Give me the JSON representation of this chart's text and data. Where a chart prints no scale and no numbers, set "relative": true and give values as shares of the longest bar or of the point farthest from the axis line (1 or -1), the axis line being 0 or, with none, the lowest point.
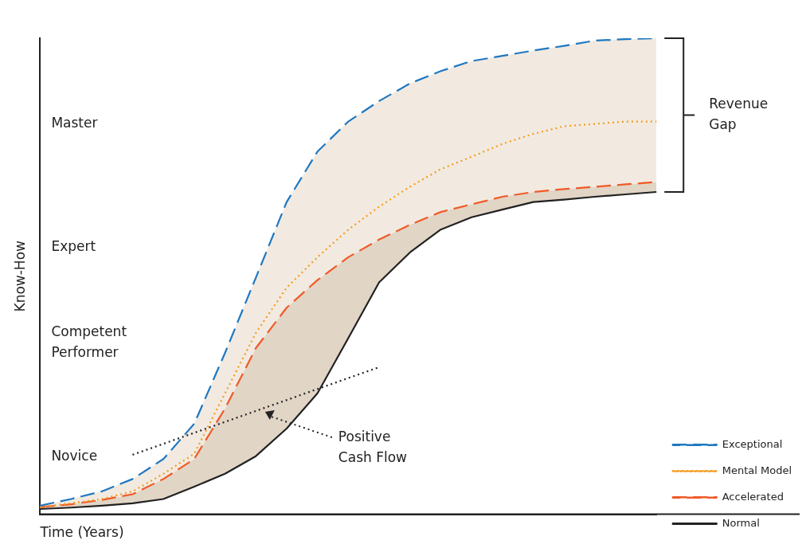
{
  "chart_data": {
    "type": "line",
    "relative": true,
    "xlabel": "Time (Years)",
    "ylabel": "Know-How",
    "grid": false,
    "legend": "bottom right",
    "categories": [
      null,
      null,
      null,
      null,
      null,
      null,
      null,
      null,
      null,
      null,
      null,
      null,
      null,
      null,
      null,
      null,
      null,
      null,
      null,
      null,
      null
    ],
    "series": [
      {
        "name": "Exceptional",
        "color": "#1f78c1",
        "line_style": "dashed",
        "values": [
          0.018,
          0.032,
          0.048,
          0.074,
          0.116,
          0.19,
          0.339,
          0.497,
          0.656,
          0.762,
          0.825,
          0.868,
          0.905,
          0.931,
          0.952,
          0.963,
          0.974,
          0.984,
          0.995,
          0.998,
          1
        ],
        "lower": [
          0.015,
          0.021,
          0.03,
          0.042,
          0.074,
          0.116,
          0.222,
          0.349,
          0.434,
          0.492,
          0.54,
          0.577,
          0.608,
          0.635,
          0.651,
          0.667,
          0.677,
          0.683,
          0.688,
          0.693,
          0.698
        ],
        "upper": [
          0.018,
          0.032,
          0.048,
          0.074,
          0.116,
          0.19,
          0.339,
          0.497,
          0.656,
          0.762,
          0.825,
          0.868,
          0.905,
          0.931,
          0.952,
          0.963,
          0.974,
          0.984,
          0.995,
          0.998,
          1
        ]
      },
      {
        "name": "Mental Model",
        "color": "#f39c1f",
        "line_style": "dotted",
        "values": [
          0.015,
          0.023,
          0.032,
          0.048,
          0.085,
          0.127,
          0.254,
          0.381,
          0.476,
          0.54,
          0.598,
          0.646,
          0.688,
          0.725,
          0.751,
          0.778,
          0.799,
          0.815,
          0.82,
          0.825,
          0.825
        ]
      },
      {
        "name": "Accelerated",
        "color": "#f05a28",
        "line_style": "dashed",
        "values": [
          0.015,
          0.021,
          0.03,
          0.042,
          0.074,
          0.116,
          0.222,
          0.349,
          0.434,
          0.492,
          0.54,
          0.577,
          0.608,
          0.635,
          0.651,
          0.667,
          0.677,
          0.683,
          0.688,
          0.693,
          0.698
        ],
        "lower": [
          0.011,
          0.014,
          0.018,
          0.023,
          0.032,
          0.058,
          0.085,
          0.122,
          0.18,
          0.254,
          0.37,
          0.487,
          0.55,
          0.598,
          0.624,
          0.64,
          0.656,
          0.661,
          0.667,
          0.672,
          0.677
        ],
        "upper": [
          0.015,
          0.021,
          0.03,
          0.042,
          0.074,
          0.116,
          0.222,
          0.349,
          0.434,
          0.492,
          0.54,
          0.577,
          0.608,
          0.635,
          0.651,
          0.667,
          0.677,
          0.683,
          0.688,
          0.693,
          0.698
        ]
      },
      {
        "name": "Normal",
        "color": "#222222",
        "line_style": "solid",
        "values": [
          0.011,
          0.014,
          0.018,
          0.023,
          0.032,
          0.058,
          0.085,
          0.122,
          0.18,
          0.254,
          0.37,
          0.487,
          0.55,
          0.598,
          0.624,
          0.64,
          0.656,
          0.661,
          0.667,
          0.672,
          0.677
        ]
      },
      {
        "color": "#222222",
        "line_style": "dotted",
        "values": [
          null,
          null,
          null,
          0.125,
          0.148,
          0.171,
          0.194,
          0.217,
          0.24,
          0.263,
          0.286,
          0.309,
          null,
          null,
          null,
          null,
          null,
          null,
          null,
          null,
          null
        ]
      }
    ],
    "annotations": [
      "Novice",
      "Competent Performer",
      "Expert",
      "Master",
      "Positive Cash Flow",
      "Revenue Gap"
    ]
  }
}
